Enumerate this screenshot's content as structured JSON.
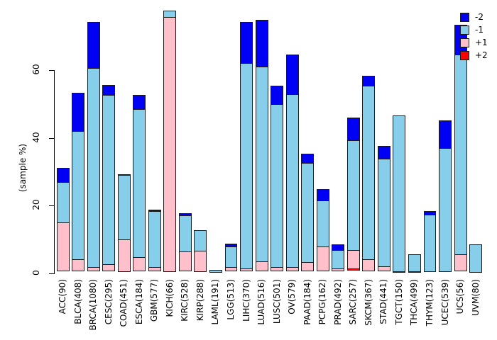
{
  "chart_data": {
    "type": "bar",
    "stacked": true,
    "title": "",
    "xlabel": "",
    "ylabel": "(sample %)",
    "yticks": [
      0,
      20,
      40,
      60
    ],
    "ylim": [
      0,
      78.6
    ],
    "grid": false,
    "legend_position": "top-right",
    "categories": [
      "ACC(90)",
      "BLCA(408)",
      "BRCA(1080)",
      "CESC(295)",
      "COAD(451)",
      "ESCA(184)",
      "GBM(577)",
      "KICH(66)",
      "KIRC(528)",
      "KIRP(288)",
      "LAML(191)",
      "LGG(513)",
      "LIHC(370)",
      "LUAD(516)",
      "LUSC(501)",
      "OV(579)",
      "PAAD(184)",
      "PCPG(162)",
      "PRAD(492)",
      "SARC(257)",
      "SKCM(367)",
      "STAD(441)",
      "TGCT(150)",
      "THCA(499)",
      "THYM(123)",
      "UCEC(539)",
      "UCS(56)",
      "UVM(80)"
    ],
    "series": [
      {
        "name": "-2",
        "color": "#0000F5",
        "values": [
          4.2,
          11.6,
          13.7,
          3.1,
          0.4,
          4.4,
          0.5,
          0,
          1.0,
          0,
          0,
          0.9,
          12.4,
          14.0,
          5.6,
          12.1,
          2.8,
          3.6,
          1.9,
          6.9,
          3.3,
          3.8,
          0,
          0,
          1.2,
          8.4,
          9.1,
          0
        ]
      },
      {
        "name": "-1",
        "color": "#87CEEB",
        "values": [
          12.3,
          38.0,
          59.1,
          50.4,
          19.3,
          44.1,
          16.8,
          2.1,
          10.9,
          6.4,
          1.0,
          6.3,
          61.0,
          57.8,
          48.4,
          51.3,
          29.5,
          13.8,
          5.6,
          32.7,
          51.4,
          32.1,
          46.2,
          5.2,
          17.1,
          36.8,
          59.2,
          8.5
        ]
      },
      {
        "name": "+1",
        "color": "#FFC0CB",
        "values": [
          14.5,
          3.7,
          1.4,
          2.1,
          9.6,
          4.2,
          1.4,
          75.5,
          5.9,
          6.3,
          0,
          1.4,
          0.9,
          3.0,
          1.3,
          1.3,
          2.9,
          7.5,
          0.9,
          5.5,
          3.7,
          1.6,
          0.4,
          0.4,
          0,
          0,
          5.1,
          0
        ]
      },
      {
        "name": "+2",
        "color": "#FF0000",
        "values": [
          0,
          0,
          0,
          0,
          0,
          0,
          0,
          0,
          0,
          0,
          0,
          0,
          0,
          0,
          0,
          0,
          0,
          0,
          0,
          0.8,
          0,
          0,
          0,
          0,
          0,
          0,
          0,
          0
        ]
      }
    ],
    "stack_order_bottom_to_top": [
      "+2",
      "+1",
      "-1",
      "-2"
    ],
    "legend_entries": [
      "-2",
      "-1",
      "+1",
      "+2"
    ]
  }
}
